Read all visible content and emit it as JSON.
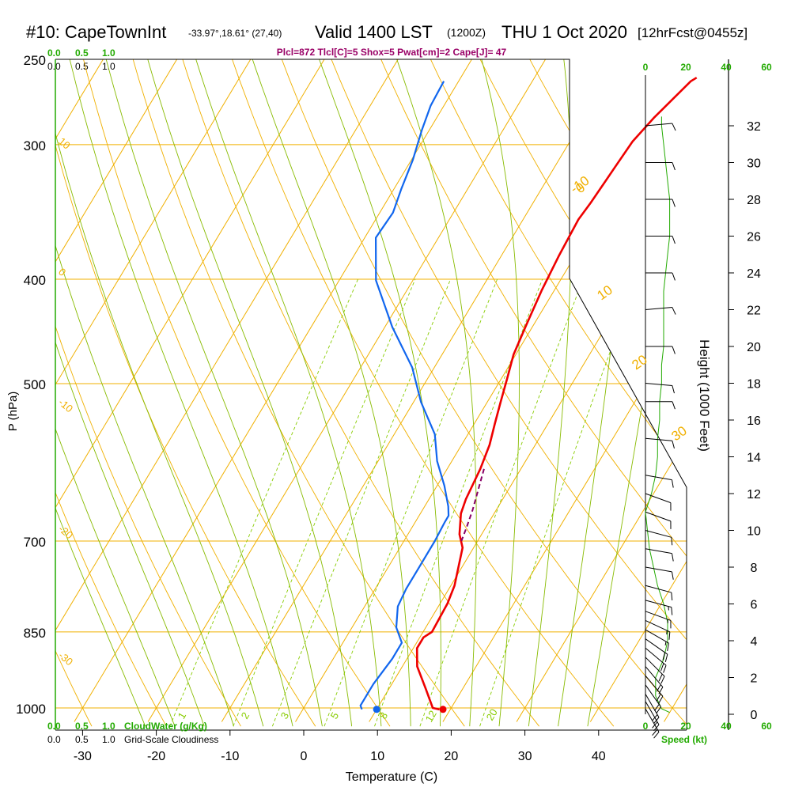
{
  "header": {
    "station": "#10: CapeTownInt",
    "coords": "-33.97°,18.61° (27,40)",
    "valid": "Valid 1400 LST",
    "zulu": "(1200Z)",
    "date": "THU 1 Oct 2020",
    "forecast": "[12hrFcst@0455z]",
    "indices": "Plcl=872 Tlcl[C]=5 Shox=5 Pwat[cm]=2 Cape[J]= 47"
  },
  "colors": {
    "isobar": "#f0b000",
    "dry_adiabat": "#f0b000",
    "moist_adiabat": "#88bb00",
    "mixing_ratio": "#88cc00",
    "temperature": "#ee0000",
    "dewpoint": "#1166ee",
    "parcel": "#880066",
    "green_text": "#22aa00",
    "wind": "#000000",
    "indices": "#990066"
  },
  "scales": {
    "cloud_water_top_labels": [
      "0.0",
      "0.5",
      "1.0"
    ],
    "cloudiness_top_labels": [
      "0.0",
      "0.5",
      "1.0"
    ],
    "cloud_water_bottom_labels": [
      "0.0",
      "0.5",
      "1.0"
    ],
    "cloud_water_bottom_title": "CloudWater (g/Kg)",
    "cloudiness_bottom_labels": [
      "0.0",
      "0.5",
      "1.0"
    ],
    "cloudiness_bottom_title": "Grid-Scale Cloudiness",
    "speed_top_labels": [
      "0",
      "20",
      "40",
      "60"
    ],
    "speed_bottom_labels": [
      "0",
      "20",
      "40",
      "60"
    ],
    "speed_title": "Speed (kt)"
  },
  "chart_data": {
    "type": "line",
    "chart_kind": "skew-T log-P sounding",
    "xlabel": "Temperature (C)",
    "ylabel": "P (hPa)",
    "right_label": "Height (1000 Feet)",
    "x_ticks": [
      -30,
      -20,
      -10,
      0,
      10,
      20,
      30,
      40
    ],
    "x_tick_labels": [
      "-30",
      "-20",
      "-10",
      "0",
      "10",
      "20",
      "30",
      "40"
    ],
    "y_ticks": [
      250,
      300,
      400,
      500,
      700,
      850,
      1000
    ],
    "y_tick_labels": [
      "250",
      "300",
      "400",
      "500",
      "700",
      "850",
      "1000"
    ],
    "height_ticks": [
      0,
      2,
      4,
      6,
      8,
      10,
      12,
      14,
      16,
      18,
      20,
      22,
      24,
      26,
      28,
      30,
      32
    ],
    "height_tick_labels": [
      "0",
      "2",
      "4",
      "6",
      "8",
      "10",
      "12",
      "14",
      "16",
      "18",
      "20",
      "22",
      "24",
      "26",
      "28",
      "30",
      "32"
    ],
    "dry_adiabat_labels": [
      "-10",
      "0",
      "10",
      "20",
      "30"
    ],
    "left_edge_labels": [
      "10",
      "0",
      "-10",
      "-20",
      "-30"
    ],
    "mixing_ratio_labels": [
      "1",
      "2",
      "3",
      "5",
      "8",
      "12",
      "20"
    ],
    "series": [
      {
        "key": "temperature",
        "points": [
          [
            18.5,
            1003
          ],
          [
            17.5,
            1000
          ],
          [
            15,
            960
          ],
          [
            12,
            915
          ],
          [
            10.5,
            880
          ],
          [
            10.5,
            860
          ],
          [
            11.2,
            850
          ],
          [
            11,
            800
          ],
          [
            10.5,
            770
          ],
          [
            8.5,
            710
          ],
          [
            7,
            690
          ],
          [
            5.5,
            660
          ],
          [
            5,
            640
          ],
          [
            4.5,
            600
          ],
          [
            3.8,
            570
          ],
          [
            2.8,
            545
          ],
          [
            1.8,
            520
          ],
          [
            0.8,
            495
          ],
          [
            -0.3,
            470
          ],
          [
            -1,
            440
          ],
          [
            -1.7,
            410
          ],
          [
            -2.2,
            380
          ],
          [
            -2.5,
            352
          ],
          [
            -2.2,
            340
          ],
          [
            -1.8,
            315
          ],
          [
            -1.5,
            298
          ],
          [
            -0.5,
            283
          ],
          [
            1.5,
            262
          ],
          [
            2,
            260
          ]
        ]
      },
      {
        "key": "dewpoint",
        "points": [
          [
            8,
            1003
          ],
          [
            7.5,
            995
          ],
          [
            7.5,
            950
          ],
          [
            8,
            900
          ],
          [
            8,
            870
          ],
          [
            6,
            842
          ],
          [
            4.5,
            805
          ],
          [
            4.2,
            775
          ],
          [
            4.2,
            745
          ],
          [
            4.2,
            700
          ],
          [
            4,
            672
          ],
          [
            4,
            663
          ],
          [
            3.2,
            650
          ],
          [
            1,
            622
          ],
          [
            -2,
            590
          ],
          [
            -4.5,
            557
          ],
          [
            -9,
            520
          ],
          [
            -13,
            483
          ],
          [
            -19,
            443
          ],
          [
            -25,
            401
          ],
          [
            -28.5,
            366
          ],
          [
            -28.2,
            347
          ],
          [
            -29,
            330
          ],
          [
            -29.8,
            310
          ],
          [
            -31,
            291
          ],
          [
            -31.8,
            276
          ],
          [
            -32,
            262
          ]
        ]
      },
      {
        "key": "parcel",
        "points": [
          [
            5,
            600
          ],
          [
            6,
            630
          ],
          [
            6.8,
            655
          ],
          [
            7.4,
            680
          ],
          [
            7.8,
            700
          ]
        ]
      }
    ],
    "surface_temperature": 19,
    "surface_dewpoint": 10,
    "wind_speed_profile": [
      [
        0.1,
        12
      ],
      [
        0.3,
        8
      ],
      [
        1,
        5
      ],
      [
        2,
        5
      ],
      [
        3,
        9
      ],
      [
        4,
        11
      ],
      [
        5,
        11
      ],
      [
        6,
        9
      ],
      [
        7,
        6
      ],
      [
        8,
        4
      ],
      [
        9,
        2
      ],
      [
        10,
        1
      ],
      [
        11,
        0
      ],
      [
        12,
        3
      ],
      [
        13,
        5
      ],
      [
        14,
        6
      ],
      [
        15,
        6
      ],
      [
        16,
        7
      ],
      [
        17,
        7
      ],
      [
        18,
        8
      ],
      [
        19,
        8
      ],
      [
        20,
        9
      ],
      [
        21,
        9
      ],
      [
        22,
        9
      ],
      [
        23,
        9
      ],
      [
        24,
        10
      ],
      [
        25,
        11
      ],
      [
        26,
        12
      ],
      [
        27,
        12
      ],
      [
        28,
        12
      ],
      [
        29,
        11
      ],
      [
        30,
        10
      ],
      [
        31,
        9
      ],
      [
        32,
        8
      ],
      [
        32.5,
        8
      ]
    ],
    "wind_barbs": [
      {
        "h": 0.3,
        "dir": 330,
        "spd": 20
      },
      {
        "h": 0.7,
        "dir": 330,
        "spd": 20
      },
      {
        "h": 1.1,
        "dir": 330,
        "spd": 20
      },
      {
        "h": 1.6,
        "dir": 325,
        "spd": 20
      },
      {
        "h": 2.1,
        "dir": 320,
        "spd": 20
      },
      {
        "h": 2.6,
        "dir": 320,
        "spd": 20
      },
      {
        "h": 3.1,
        "dir": 315,
        "spd": 20
      },
      {
        "h": 3.6,
        "dir": 310,
        "spd": 20
      },
      {
        "h": 4.1,
        "dir": 305,
        "spd": 20
      },
      {
        "h": 4.6,
        "dir": 300,
        "spd": 15
      },
      {
        "h": 5.1,
        "dir": 295,
        "spd": 15
      },
      {
        "h": 5.6,
        "dir": 290,
        "spd": 15
      },
      {
        "h": 6.2,
        "dir": 285,
        "spd": 15
      },
      {
        "h": 7,
        "dir": 285,
        "spd": 10
      },
      {
        "h": 8,
        "dir": 280,
        "spd": 10
      },
      {
        "h": 9,
        "dir": 280,
        "spd": 10
      },
      {
        "h": 10,
        "dir": 285,
        "spd": 10
      },
      {
        "h": 11,
        "dir": 290,
        "spd": 10
      },
      {
        "h": 12,
        "dir": 290,
        "spd": 10
      },
      {
        "h": 13,
        "dir": 280,
        "spd": 10
      },
      {
        "h": 15,
        "dir": 275,
        "spd": 10
      },
      {
        "h": 17,
        "dir": 270,
        "spd": 10
      },
      {
        "h": 18,
        "dir": 275,
        "spd": 10
      },
      {
        "h": 20,
        "dir": 270,
        "spd": 10
      },
      {
        "h": 22,
        "dir": 265,
        "spd": 10
      },
      {
        "h": 24,
        "dir": 270,
        "spd": 10
      },
      {
        "h": 26,
        "dir": 270,
        "spd": 10
      },
      {
        "h": 28,
        "dir": 270,
        "spd": 10
      },
      {
        "h": 30,
        "dir": 270,
        "spd": 10
      },
      {
        "h": 32,
        "dir": 265,
        "spd": 10
      }
    ]
  }
}
